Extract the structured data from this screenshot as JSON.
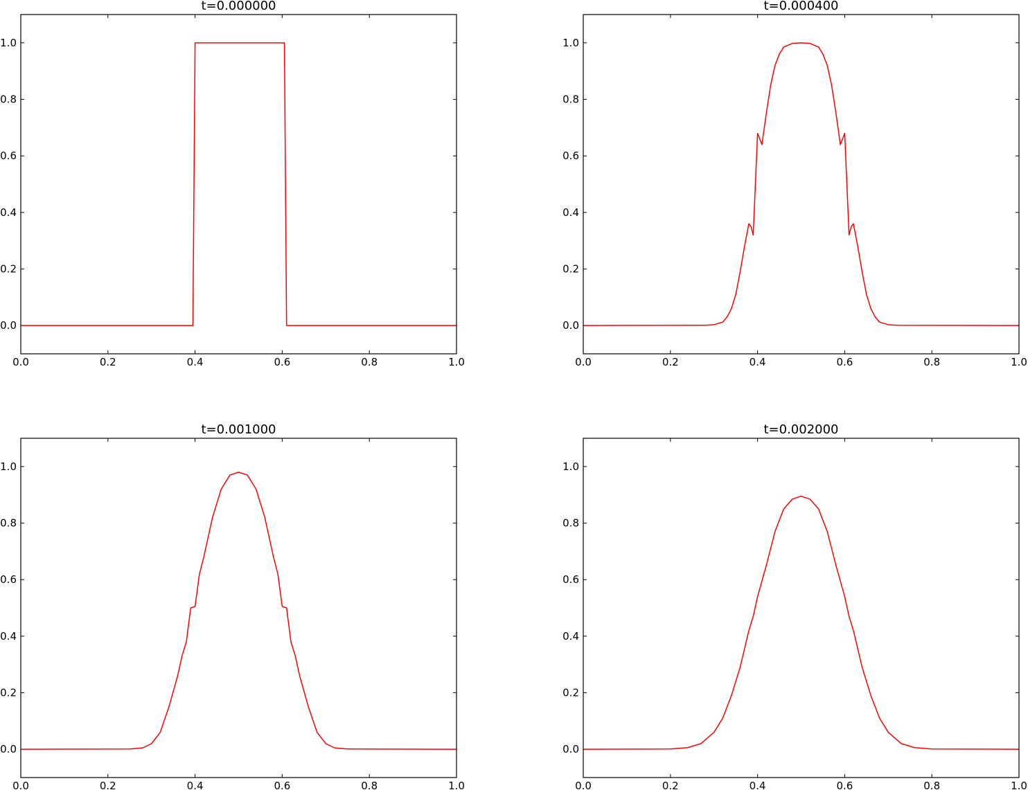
{
  "chart_data": [
    {
      "type": "line",
      "title": "t=0.000000",
      "xlabel": "",
      "ylabel": "",
      "xlim": [
        0.0,
        1.0
      ],
      "ylim": [
        -0.1,
        1.1
      ],
      "xticks": [
        "0.0",
        "0.2",
        "0.4",
        "0.6",
        "0.8",
        "1.0"
      ],
      "yticks": [
        "0.0",
        "0.2",
        "0.4",
        "0.6",
        "0.8",
        "1.0"
      ],
      "grid": false,
      "series": [
        {
          "color": "#ff0000",
          "x": [
            0.0,
            0.39,
            0.395,
            0.4,
            0.6,
            0.605,
            0.61,
            1.0
          ],
          "y": [
            0.0,
            0.0,
            0.0,
            1.0,
            1.0,
            1.0,
            0.0,
            0.0
          ]
        }
      ]
    },
    {
      "type": "line",
      "title": "t=0.000400",
      "xlabel": "",
      "ylabel": "",
      "xlim": [
        0.0,
        1.0
      ],
      "ylim": [
        -0.1,
        1.1
      ],
      "xticks": [
        "0.0",
        "0.2",
        "0.4",
        "0.6",
        "0.8",
        "1.0"
      ],
      "yticks": [
        "0.0",
        "0.2",
        "0.4",
        "0.6",
        "0.8",
        "1.0"
      ],
      "grid": false,
      "series": [
        {
          "color": "#ff0000",
          "x": [
            0.0,
            0.28,
            0.3,
            0.32,
            0.33,
            0.34,
            0.35,
            0.36,
            0.37,
            0.38,
            0.385,
            0.39,
            0.4,
            0.41,
            0.42,
            0.43,
            0.44,
            0.45,
            0.46,
            0.48,
            0.5,
            0.52,
            0.54,
            0.55,
            0.56,
            0.57,
            0.58,
            0.59,
            0.6,
            0.61,
            0.615,
            0.62,
            0.63,
            0.64,
            0.65,
            0.66,
            0.67,
            0.68,
            0.7,
            0.72,
            1.0
          ],
          "y": [
            0.0,
            0.001,
            0.003,
            0.012,
            0.03,
            0.06,
            0.11,
            0.19,
            0.28,
            0.36,
            0.35,
            0.32,
            0.68,
            0.64,
            0.75,
            0.85,
            0.92,
            0.96,
            0.985,
            0.998,
            1.0,
            0.998,
            0.985,
            0.96,
            0.92,
            0.85,
            0.75,
            0.64,
            0.68,
            0.32,
            0.35,
            0.36,
            0.28,
            0.19,
            0.11,
            0.06,
            0.03,
            0.012,
            0.003,
            0.001,
            0.0
          ]
        }
      ]
    },
    {
      "type": "line",
      "title": "t=0.001000",
      "xlabel": "",
      "ylabel": "",
      "xlim": [
        0.0,
        1.0
      ],
      "ylim": [
        -0.1,
        1.1
      ],
      "xticks": [
        "0.0",
        "0.2",
        "0.4",
        "0.6",
        "0.8",
        "1.0"
      ],
      "yticks": [
        "0.0",
        "0.2",
        "0.4",
        "0.6",
        "0.8",
        "1.0"
      ],
      "grid": false,
      "series": [
        {
          "color": "#ff0000",
          "x": [
            0.0,
            0.25,
            0.28,
            0.3,
            0.32,
            0.34,
            0.36,
            0.37,
            0.38,
            0.39,
            0.4,
            0.41,
            0.42,
            0.44,
            0.46,
            0.48,
            0.5,
            0.52,
            0.54,
            0.56,
            0.58,
            0.59,
            0.6,
            0.61,
            0.62,
            0.63,
            0.64,
            0.66,
            0.68,
            0.7,
            0.72,
            0.75,
            1.0
          ],
          "y": [
            0.0,
            0.001,
            0.005,
            0.02,
            0.06,
            0.15,
            0.26,
            0.33,
            0.38,
            0.5,
            0.505,
            0.62,
            0.68,
            0.82,
            0.92,
            0.97,
            0.98,
            0.97,
            0.92,
            0.82,
            0.68,
            0.62,
            0.505,
            0.5,
            0.38,
            0.33,
            0.26,
            0.15,
            0.06,
            0.02,
            0.005,
            0.001,
            0.0
          ]
        }
      ]
    },
    {
      "type": "line",
      "title": "t=0.002000",
      "xlabel": "",
      "ylabel": "",
      "xlim": [
        0.0,
        1.0
      ],
      "ylim": [
        -0.1,
        1.1
      ],
      "xticks": [
        "0.0",
        "0.2",
        "0.4",
        "0.6",
        "0.8",
        "1.0"
      ],
      "yticks": [
        "0.0",
        "0.2",
        "0.4",
        "0.6",
        "0.8",
        "1.0"
      ],
      "grid": false,
      "series": [
        {
          "color": "#ff0000",
          "x": [
            0.0,
            0.2,
            0.24,
            0.27,
            0.3,
            0.32,
            0.34,
            0.36,
            0.38,
            0.39,
            0.4,
            0.42,
            0.44,
            0.46,
            0.48,
            0.5,
            0.52,
            0.54,
            0.56,
            0.58,
            0.6,
            0.61,
            0.62,
            0.64,
            0.66,
            0.68,
            0.7,
            0.73,
            0.76,
            0.8,
            1.0
          ],
          "y": [
            0.0,
            0.001,
            0.006,
            0.02,
            0.06,
            0.11,
            0.19,
            0.29,
            0.42,
            0.47,
            0.54,
            0.65,
            0.77,
            0.85,
            0.885,
            0.895,
            0.885,
            0.85,
            0.77,
            0.65,
            0.54,
            0.47,
            0.42,
            0.29,
            0.19,
            0.11,
            0.06,
            0.02,
            0.006,
            0.001,
            0.0
          ]
        }
      ]
    }
  ]
}
